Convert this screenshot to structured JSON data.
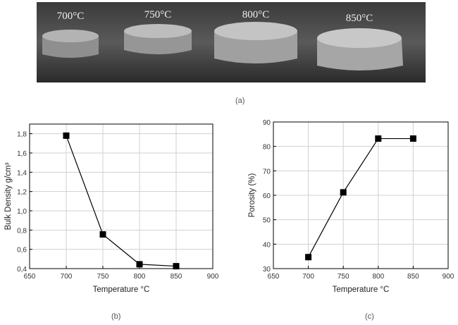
{
  "photo": {
    "labels": [
      "700°C",
      "750°C",
      "800°C",
      "850°C"
    ]
  },
  "captions": {
    "a": "(a)",
    "b": "(b)",
    "c": "(c)"
  },
  "chart_data": [
    {
      "type": "line",
      "title": "",
      "xlabel": "Temperature °C",
      "ylabel": "Bulk Density g/cm³",
      "x": [
        700,
        750,
        800,
        850
      ],
      "values": [
        1.78,
        0.755,
        0.445,
        0.425
      ],
      "xlim": [
        650,
        900
      ],
      "ylim": [
        0.4,
        1.9
      ],
      "xticks": [
        "650",
        "700",
        "750",
        "800",
        "850",
        "900"
      ],
      "yticks": [
        "0,4",
        "0,6",
        "0,8",
        "1,0",
        "1,2",
        "1,4",
        "1,6",
        "1,8"
      ],
      "grid": true
    },
    {
      "type": "line",
      "title": "",
      "xlabel": "Temperature °C",
      "ylabel": "Porosity (%)",
      "x": [
        700,
        750,
        800,
        850
      ],
      "values": [
        34.7,
        61.2,
        83.2,
        83.2
      ],
      "xlim": [
        650,
        900
      ],
      "ylim": [
        30,
        90
      ],
      "xticks": [
        "650",
        "700",
        "750",
        "800",
        "850",
        "900"
      ],
      "yticks": [
        "30",
        "40",
        "50",
        "60",
        "70",
        "80",
        "90"
      ],
      "grid": true
    }
  ]
}
